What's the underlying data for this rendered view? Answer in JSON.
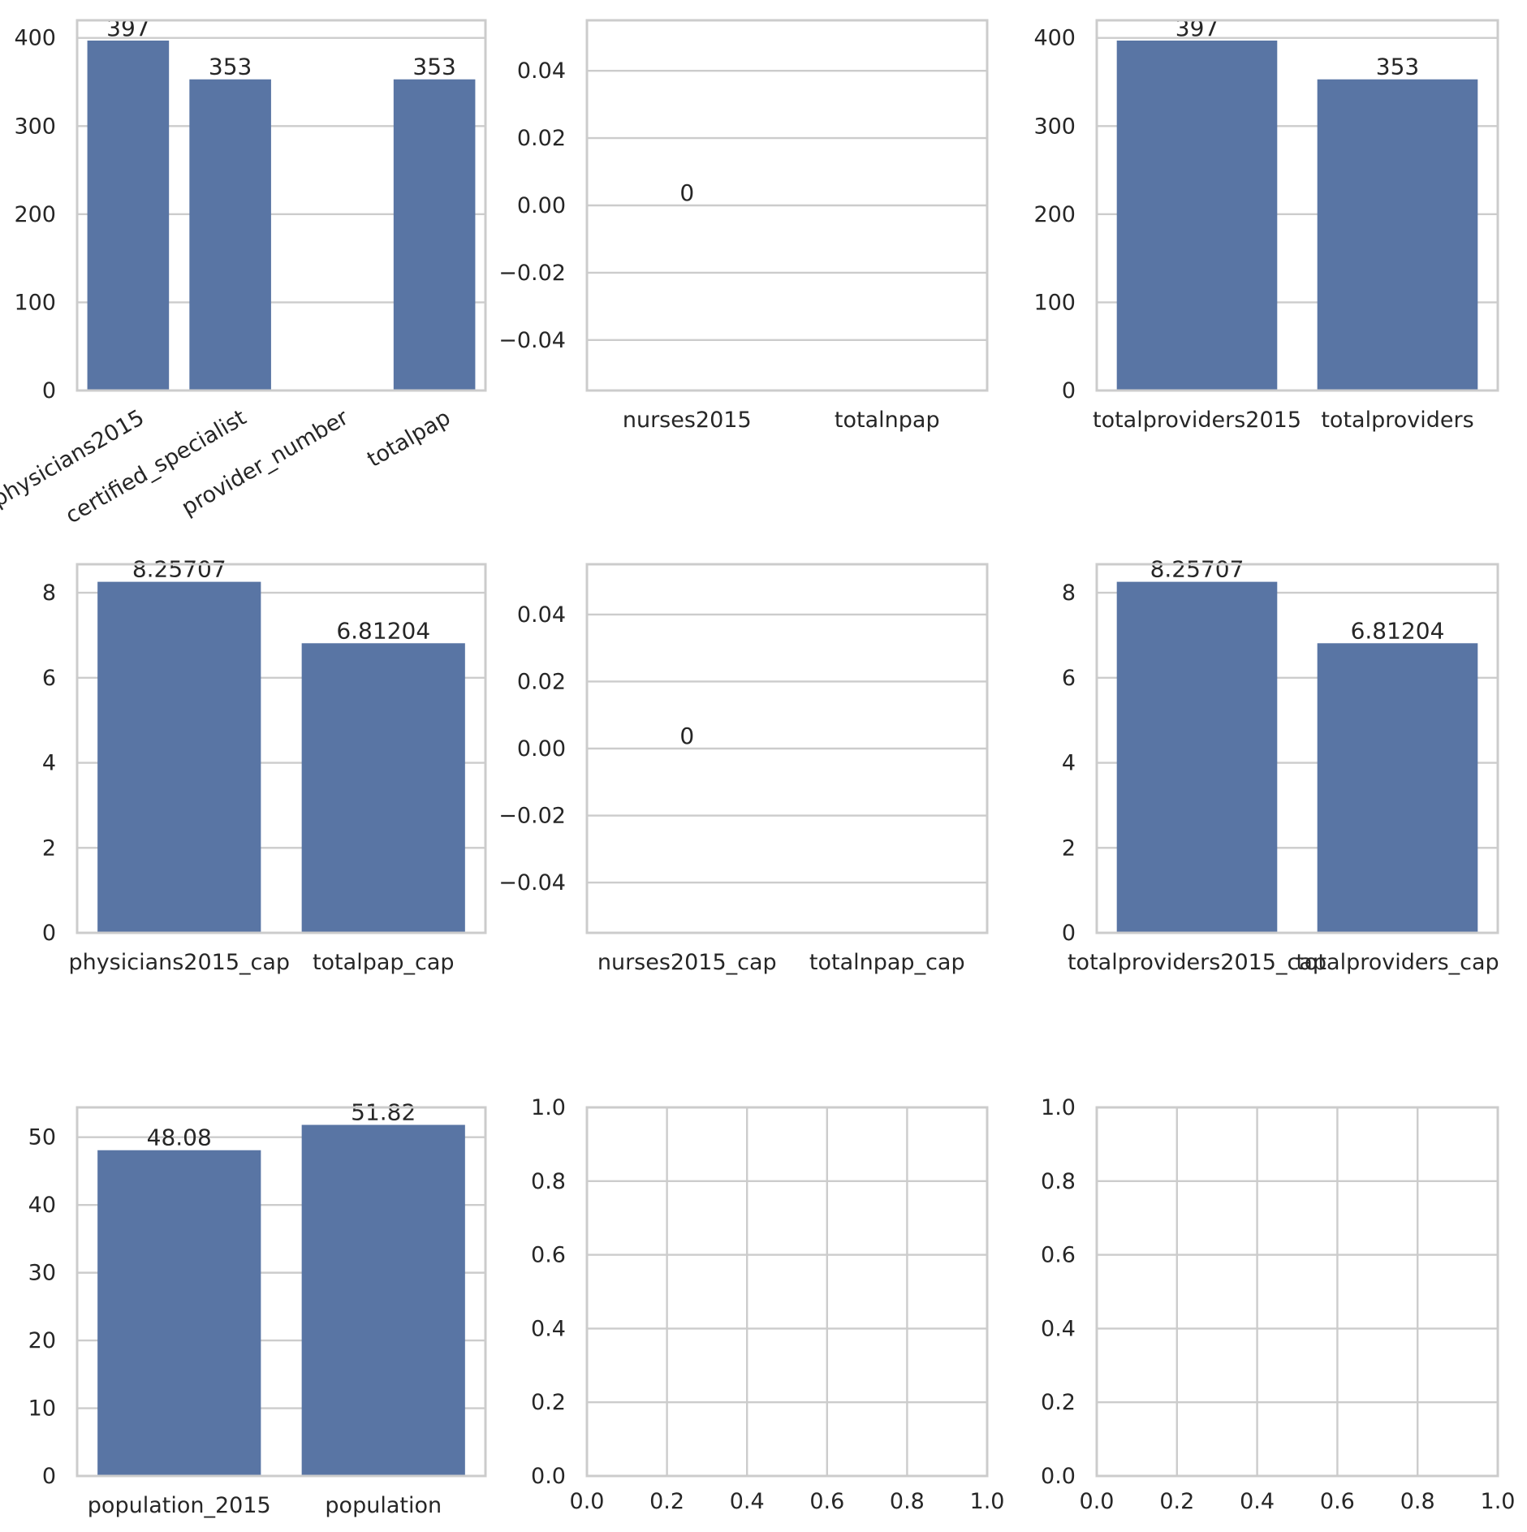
{
  "colors": {
    "bar": "#5975a4",
    "grid": "#cccccc",
    "text": "#262626",
    "background": "#ffffff"
  },
  "chart_data": [
    {
      "type": "bar",
      "categories": [
        "physicians2015",
        "certified_specialist",
        "provider_number",
        "totalpap"
      ],
      "values": [
        397,
        353,
        0,
        353
      ],
      "data_labels": [
        "397",
        "353",
        "",
        "353"
      ],
      "ylim": [
        0,
        420
      ],
      "yticks": [
        "0",
        "100",
        "200",
        "300",
        "400"
      ],
      "xtick_rotation": 30
    },
    {
      "type": "bar",
      "categories": [
        "nurses2015",
        "totalnpap"
      ],
      "values": [
        0,
        0
      ],
      "data_labels": [
        "0",
        ""
      ],
      "ylim": [
        -0.055,
        0.055
      ],
      "yticks": [
        "−0.04",
        "−0.02",
        "0.00",
        "0.02",
        "0.04"
      ]
    },
    {
      "type": "bar",
      "categories": [
        "totalproviders2015",
        "totalproviders"
      ],
      "values": [
        397,
        353
      ],
      "data_labels": [
        "397",
        "353"
      ],
      "ylim": [
        0,
        420
      ],
      "yticks": [
        "0",
        "100",
        "200",
        "300",
        "400"
      ]
    },
    {
      "type": "bar",
      "categories": [
        "physicians2015_cap",
        "totalpap_cap"
      ],
      "values": [
        8.25707,
        6.81204
      ],
      "data_labels": [
        "8.25707",
        "6.81204"
      ],
      "ylim": [
        0,
        8.67
      ],
      "yticks": [
        "0",
        "2",
        "4",
        "6",
        "8"
      ]
    },
    {
      "type": "bar",
      "categories": [
        "nurses2015_cap",
        "totalnpap_cap"
      ],
      "values": [
        0,
        0
      ],
      "data_labels": [
        "0",
        ""
      ],
      "ylim": [
        -0.055,
        0.055
      ],
      "yticks": [
        "−0.04",
        "−0.02",
        "0.00",
        "0.02",
        "0.04"
      ]
    },
    {
      "type": "bar",
      "categories": [
        "totalproviders2015_cap",
        "totalproviders_cap"
      ],
      "values": [
        8.25707,
        6.81204
      ],
      "data_labels": [
        "8.25707",
        "6.81204"
      ],
      "ylim": [
        0,
        8.67
      ],
      "yticks": [
        "0",
        "2",
        "4",
        "6",
        "8"
      ]
    },
    {
      "type": "bar",
      "categories": [
        "population_2015",
        "population"
      ],
      "values": [
        48.08,
        51.82
      ],
      "data_labels": [
        "48.08",
        "51.82"
      ],
      "ylim": [
        0,
        54.4
      ],
      "yticks": [
        "0",
        "10",
        "20",
        "30",
        "40",
        "50"
      ]
    },
    {
      "type": "empty",
      "xlim": [
        0,
        1
      ],
      "ylim": [
        0,
        1
      ],
      "xticks": [
        "0.0",
        "0.2",
        "0.4",
        "0.6",
        "0.8",
        "1.0"
      ],
      "yticks": [
        "0.0",
        "0.2",
        "0.4",
        "0.6",
        "0.8",
        "1.0"
      ]
    },
    {
      "type": "empty",
      "xlim": [
        0,
        1
      ],
      "ylim": [
        0,
        1
      ],
      "xticks": [
        "0.0",
        "0.2",
        "0.4",
        "0.6",
        "0.8",
        "1.0"
      ],
      "yticks": [
        "0.0",
        "0.2",
        "0.4",
        "0.6",
        "0.8",
        "1.0"
      ]
    }
  ]
}
